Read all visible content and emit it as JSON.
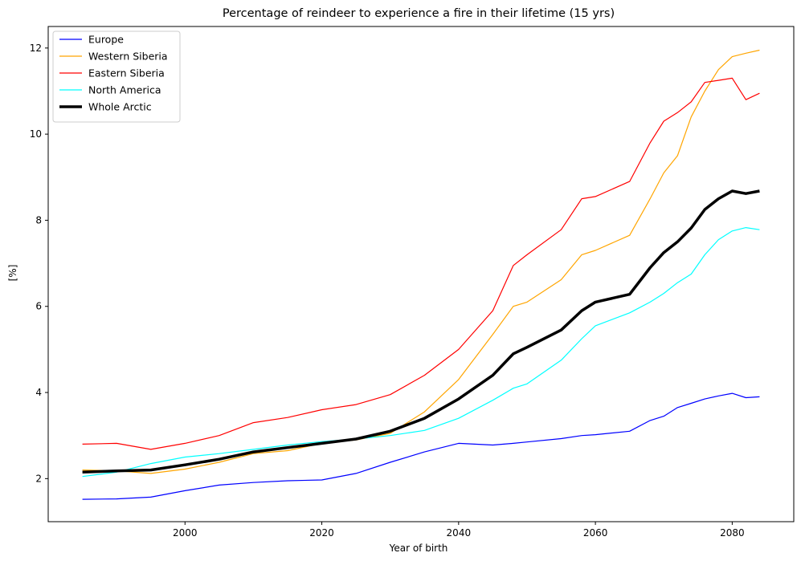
{
  "chart_data": {
    "type": "line",
    "title": "Percentage of reindeer to experience a fire in their lifetime (15 yrs)",
    "xlabel": "Year of birth",
    "ylabel": "[%]",
    "xlim": [
      1980,
      2089
    ],
    "ylim": [
      1.0,
      12.5
    ],
    "xticks": [
      2000,
      2020,
      2040,
      2060,
      2080
    ],
    "yticks": [
      2,
      4,
      6,
      8,
      10,
      12
    ],
    "legend_position": "upper-left",
    "x": [
      1985,
      1990,
      1995,
      2000,
      2005,
      2010,
      2015,
      2020,
      2025,
      2030,
      2035,
      2040,
      2045,
      2048,
      2050,
      2055,
      2058,
      2060,
      2065,
      2068,
      2070,
      2072,
      2074,
      2076,
      2078,
      2080,
      2082,
      2084
    ],
    "series": [
      {
        "name": "Europe",
        "color": "#0000ff",
        "width": 1.2,
        "values": [
          1.52,
          1.53,
          1.57,
          1.72,
          1.85,
          1.91,
          1.95,
          1.97,
          2.12,
          2.38,
          2.62,
          2.82,
          2.78,
          2.82,
          2.85,
          2.93,
          3.0,
          3.02,
          3.1,
          3.35,
          3.45,
          3.65,
          3.75,
          3.85,
          3.92,
          3.98,
          3.88,
          3.9
        ]
      },
      {
        "name": "Western Siberia",
        "color": "#ffa500",
        "width": 1.2,
        "values": [
          2.2,
          2.18,
          2.12,
          2.22,
          2.38,
          2.58,
          2.65,
          2.82,
          2.9,
          3.05,
          3.55,
          4.3,
          5.35,
          6.0,
          6.1,
          6.62,
          7.2,
          7.3,
          7.65,
          8.5,
          9.1,
          9.5,
          10.4,
          11.0,
          11.5,
          11.8,
          11.88,
          11.95
        ]
      },
      {
        "name": "Eastern Siberia",
        "color": "#ff0000",
        "width": 1.2,
        "values": [
          2.8,
          2.82,
          2.68,
          2.82,
          3.0,
          3.3,
          3.42,
          3.6,
          3.72,
          3.95,
          4.4,
          5.0,
          5.9,
          6.95,
          7.2,
          7.78,
          8.5,
          8.55,
          8.9,
          9.8,
          10.3,
          10.5,
          10.75,
          11.2,
          11.25,
          11.3,
          10.8,
          10.95
        ]
      },
      {
        "name": "North America",
        "color": "#00ffff",
        "width": 1.2,
        "values": [
          2.05,
          2.15,
          2.35,
          2.5,
          2.58,
          2.68,
          2.78,
          2.86,
          2.92,
          3.0,
          3.12,
          3.4,
          3.82,
          4.1,
          4.2,
          4.75,
          5.25,
          5.55,
          5.85,
          6.1,
          6.3,
          6.55,
          6.75,
          7.2,
          7.55,
          7.75,
          7.83,
          7.78
        ]
      },
      {
        "name": "Whole Arctic",
        "color": "#000000",
        "width": 3.5,
        "values": [
          2.15,
          2.18,
          2.2,
          2.32,
          2.45,
          2.62,
          2.72,
          2.82,
          2.92,
          3.1,
          3.4,
          3.85,
          4.4,
          4.9,
          5.05,
          5.45,
          5.9,
          6.1,
          6.28,
          6.9,
          7.25,
          7.5,
          7.82,
          8.25,
          8.5,
          8.68,
          8.62,
          8.68
        ]
      }
    ]
  }
}
